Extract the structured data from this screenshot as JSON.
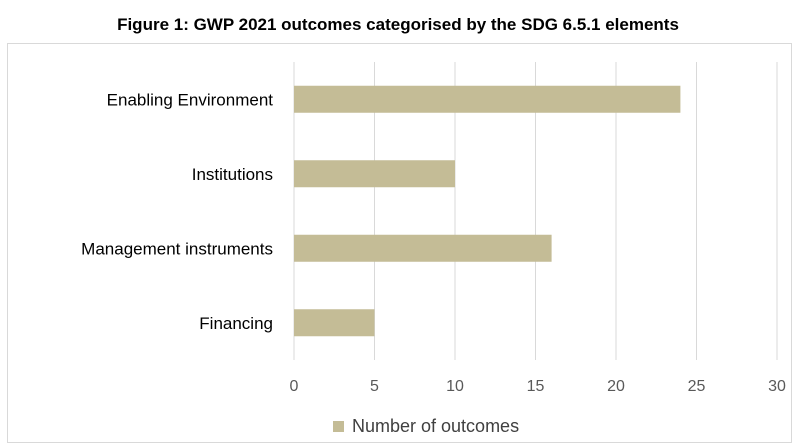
{
  "chart_data": {
    "type": "bar",
    "orientation": "horizontal",
    "title": "Figure 1: GWP 2021 outcomes categorised by the SDG 6.5.1 elements",
    "categories": [
      "Enabling Environment",
      "Institutions",
      "Management instruments",
      "Financing"
    ],
    "series": [
      {
        "name": "Number of outcomes",
        "values": [
          24,
          10,
          16,
          5
        ],
        "color": "#c4bc96"
      }
    ],
    "xlim": [
      0,
      30
    ],
    "xticks": [
      "0",
      "5",
      "10",
      "15",
      "20",
      "25",
      "30"
    ],
    "xlabel": "",
    "ylabel": "",
    "grid": true,
    "legend_position": "bottom"
  },
  "colors": {
    "bar": "#c4bc96",
    "grid": "#d9d9d9"
  }
}
